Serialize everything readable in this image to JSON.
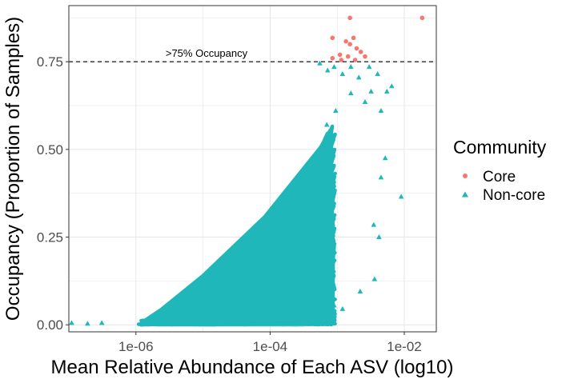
{
  "chart_data": {
    "type": "scatter",
    "title": "",
    "xlabel": "Mean Relative Abundance of Each ASV (log10)",
    "ylabel": "Occupancy (Proportion of Samples)",
    "x_scale": "log10",
    "xlim": [
      1e-07,
      0.03
    ],
    "ylim": [
      -0.02,
      0.91
    ],
    "x_ticks": [
      1e-06,
      0.0001,
      0.01
    ],
    "x_tick_labels": [
      "1e-06",
      "1e-04",
      "1e-02"
    ],
    "y_ticks": [
      0.0,
      0.25,
      0.5,
      0.75
    ],
    "y_tick_labels": [
      "0.00",
      "0.25",
      "0.50",
      "0.75"
    ],
    "grid": true,
    "legend": {
      "title": "Community",
      "position": "right",
      "entries": [
        "Core",
        "Non-core"
      ]
    },
    "reference_line": {
      "y": 0.75,
      "style": "dashed",
      "label": ">75% Occupancy"
    },
    "colors": {
      "Core": "#F8766D",
      "Non-core": "#1FB7B9"
    },
    "series": [
      {
        "name": "Core",
        "marker": "circle",
        "points": [
          [
            0.0185,
            0.875
          ],
          [
            0.00155,
            0.875
          ],
          [
            0.00085,
            0.818
          ],
          [
            0.00135,
            0.808
          ],
          [
            0.00175,
            0.818
          ],
          [
            0.00155,
            0.8
          ],
          [
            0.00195,
            0.788
          ],
          [
            0.00225,
            0.778
          ],
          [
            0.0011,
            0.77
          ],
          [
            0.00145,
            0.765
          ],
          [
            0.0026,
            0.765
          ],
          [
            0.00085,
            0.76
          ],
          [
            0.00185,
            0.755
          ],
          [
            0.00115,
            0.755
          ]
        ]
      },
      {
        "name": "Non-core",
        "marker": "triangle",
        "points": [
          [
            1.1e-07,
            0.005
          ],
          [
            1.9e-07,
            0.003
          ],
          [
            3.1e-07,
            0.005
          ],
          [
            0.00055,
            0.745
          ],
          [
            0.00072,
            0.725
          ],
          [
            0.0009,
            0.735
          ],
          [
            0.0012,
            0.715
          ],
          [
            0.0016,
            0.735
          ],
          [
            0.0021,
            0.705
          ],
          [
            0.003,
            0.735
          ],
          [
            0.004,
            0.715
          ],
          [
            0.0032,
            0.665
          ],
          [
            0.0055,
            0.665
          ],
          [
            0.0065,
            0.68
          ],
          [
            0.0045,
            0.61
          ],
          [
            0.0026,
            0.635
          ],
          [
            0.0052,
            0.475
          ],
          [
            0.009,
            0.365
          ],
          [
            0.0045,
            0.42
          ],
          [
            0.0035,
            0.285
          ],
          [
            0.0042,
            0.25
          ],
          [
            0.0036,
            0.13
          ],
          [
            0.0022,
            0.095
          ],
          [
            0.0012,
            0.045
          ],
          [
            0.0009,
            0.055
          ],
          [
            0.0004,
            0.032
          ],
          [
            0.00023,
            0.022
          ],
          [
            0.0016,
            0.66
          ],
          [
            0.00095,
            0.61
          ],
          [
            0.0007,
            0.57
          ]
        ]
      }
    ]
  }
}
